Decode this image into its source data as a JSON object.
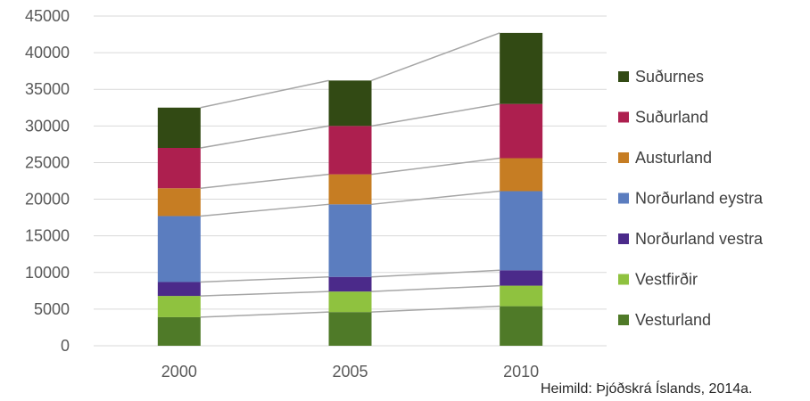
{
  "chart_data": {
    "type": "bar",
    "stacked": true,
    "categories": [
      "2000",
      "2005",
      "2010"
    ],
    "ylim": [
      0,
      45000
    ],
    "yticks": [
      0,
      5000,
      10000,
      15000,
      20000,
      25000,
      30000,
      35000,
      40000,
      45000
    ],
    "grid": true,
    "legend_position": "right",
    "series": [
      {
        "name": "Vesturland",
        "color": "#4f7a28",
        "values": [
          3900,
          4600,
          5400
        ]
      },
      {
        "name": "Vestfirðir",
        "color": "#8fc23f",
        "values": [
          2900,
          2800,
          2800
        ]
      },
      {
        "name": "Norðurland vestra",
        "color": "#4b2a8a",
        "values": [
          1900,
          2000,
          2100
        ]
      },
      {
        "name": "Norðurland eystra",
        "color": "#5b7dbf",
        "values": [
          9000,
          9900,
          10800
        ]
      },
      {
        "name": "Austurland",
        "color": "#c67d23",
        "values": [
          3800,
          4100,
          4500
        ]
      },
      {
        "name": "Suðurland",
        "color": "#ad1f4f",
        "values": [
          5500,
          6600,
          7400
        ]
      },
      {
        "name": "Suðurnes",
        "color": "#324a14",
        "values": [
          5500,
          6200,
          9700
        ]
      }
    ]
  },
  "source_note": "Heimild: Þjóðskrá Íslands, 2014a."
}
